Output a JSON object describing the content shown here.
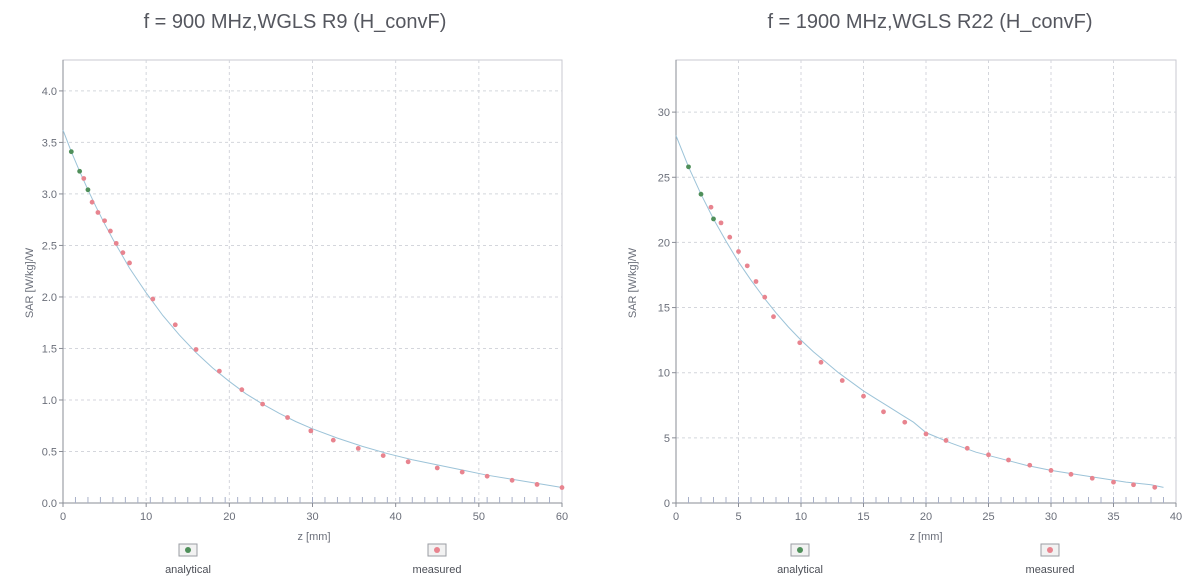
{
  "chart_data": [
    {
      "type": "scatter",
      "title": "f = 900 MHz,WGLS R9 (H_convF)",
      "xlabel": "z [mm]",
      "ylabel": "SAR [W/kg]/W",
      "xlim": [
        0,
        60
      ],
      "ylim": [
        0,
        4.3
      ],
      "xticks": [
        0,
        10,
        20,
        30,
        40,
        50,
        60
      ],
      "yticks": [
        0.0,
        0.5,
        1.0,
        1.5,
        2.0,
        2.5,
        3.0,
        3.5,
        4.0
      ],
      "xtick_labels": [
        "0",
        "10",
        "20",
        "30",
        "40",
        "50",
        "60"
      ],
      "ytick_labels": [
        "0.0",
        "0.5",
        "1.0",
        "1.5",
        "2.0",
        "2.5",
        "3.0",
        "3.5",
        "4.0"
      ],
      "grid": true,
      "legend": "bottom",
      "series": [
        {
          "name": "analytical",
          "color": "#4f8f5a",
          "x": [
            0,
            1,
            2,
            3,
            4,
            5,
            6,
            7,
            8,
            9,
            10,
            12,
            14,
            16,
            18,
            20,
            22,
            24,
            26,
            28,
            30,
            33,
            36,
            39,
            42,
            45,
            48,
            51,
            54,
            57,
            60
          ],
          "y": [
            3.62,
            3.41,
            3.22,
            3.04,
            2.87,
            2.71,
            2.56,
            2.42,
            2.28,
            2.16,
            2.04,
            1.82,
            1.63,
            1.46,
            1.31,
            1.18,
            1.06,
            0.96,
            0.87,
            0.79,
            0.72,
            0.63,
            0.55,
            0.48,
            0.42,
            0.37,
            0.32,
            0.27,
            0.23,
            0.19,
            0.15
          ]
        },
        {
          "name": "measured",
          "color": "#e8848f",
          "x": [
            2.5,
            3.5,
            4.2,
            5,
            5.7,
            6.4,
            7.2,
            8,
            10.8,
            13.5,
            16,
            18.8,
            21.5,
            24,
            27,
            29.8,
            32.5,
            35.5,
            38.5,
            41.5,
            45,
            48,
            51,
            54,
            57,
            60
          ],
          "y": [
            3.15,
            2.92,
            2.82,
            2.74,
            2.64,
            2.52,
            2.43,
            2.33,
            1.98,
            1.73,
            1.49,
            1.28,
            1.1,
            0.96,
            0.83,
            0.7,
            0.61,
            0.53,
            0.46,
            0.4,
            0.34,
            0.3,
            0.26,
            0.22,
            0.18,
            0.15
          ]
        }
      ]
    },
    {
      "type": "scatter",
      "title": "f = 1900 MHz,WGLS R22 (H_convF)",
      "xlabel": "z [mm]",
      "ylabel": "SAR [W/kg]/W",
      "xlim": [
        0,
        40
      ],
      "ylim": [
        0,
        34
      ],
      "xticks": [
        0,
        5,
        10,
        15,
        20,
        25,
        30,
        35,
        40
      ],
      "yticks": [
        0,
        5,
        10,
        15,
        20,
        25,
        30
      ],
      "xtick_labels": [
        "0",
        "5",
        "10",
        "15",
        "20",
        "25",
        "30",
        "35",
        "40"
      ],
      "ytick_labels": [
        "0",
        "5",
        "10",
        "15",
        "20",
        "25",
        "30"
      ],
      "grid": true,
      "legend": "bottom",
      "series": [
        {
          "name": "analytical",
          "color": "#4f8f5a",
          "x": [
            0,
            1,
            2,
            3,
            4,
            5,
            6,
            7,
            8,
            9,
            10,
            11,
            12,
            13,
            14,
            15,
            16,
            17,
            18,
            19,
            20,
            22,
            24,
            26,
            28,
            30,
            32,
            34,
            36,
            38,
            39
          ],
          "y": [
            28.2,
            25.8,
            23.7,
            21.8,
            20.1,
            18.5,
            17.1,
            15.8,
            14.6,
            13.5,
            12.5,
            11.6,
            10.8,
            10.0,
            9.3,
            8.6,
            8.0,
            7.4,
            6.8,
            6.2,
            5.4,
            4.6,
            3.9,
            3.4,
            2.9,
            2.5,
            2.2,
            1.9,
            1.6,
            1.4,
            1.2
          ]
        },
        {
          "name": "measured",
          "color": "#e8848f",
          "x": [
            2.8,
            3.6,
            4.3,
            5,
            5.7,
            6.4,
            7.1,
            7.8,
            9.9,
            11.6,
            13.3,
            15,
            16.6,
            18.3,
            20,
            21.6,
            23.3,
            25,
            26.6,
            28.3,
            30,
            31.6,
            33.3,
            35,
            36.6,
            38.3
          ],
          "y": [
            22.7,
            21.5,
            20.4,
            19.3,
            18.2,
            17.0,
            15.8,
            14.3,
            12.3,
            10.8,
            9.4,
            8.2,
            7.0,
            6.2,
            5.3,
            4.8,
            4.2,
            3.7,
            3.3,
            2.9,
            2.5,
            2.2,
            1.9,
            1.6,
            1.4,
            1.2
          ]
        }
      ]
    }
  ]
}
